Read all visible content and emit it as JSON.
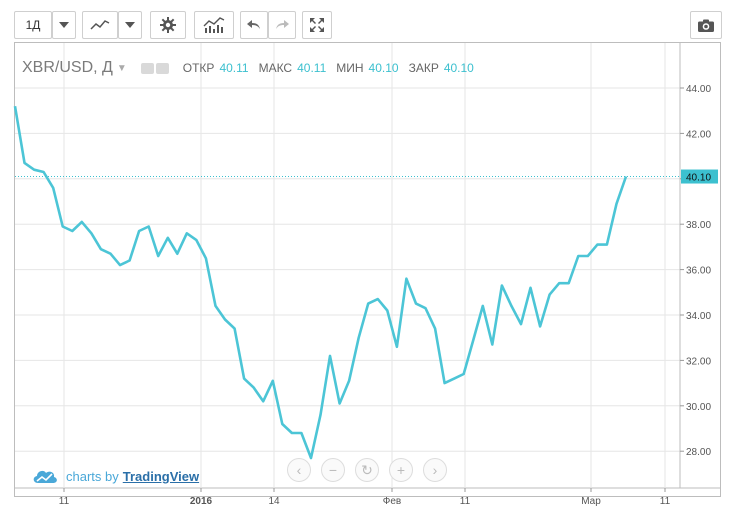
{
  "toolbar": {
    "interval_label": "1Д"
  },
  "legend": {
    "symbol": "XBR/USD, Д",
    "open_label": "ОТКР",
    "open_value": "40.11",
    "high_label": "МАКС",
    "high_value": "40.11",
    "low_label": "МИН",
    "low_value": "40.10",
    "close_label": "ЗАКР",
    "close_value": "40.10"
  },
  "branding": {
    "prefix": "charts by",
    "name": "TradingView"
  },
  "colors": {
    "line": "#4cc5d6",
    "price_tag": "#3cc0cf",
    "grid": "#e6e6e6"
  },
  "chart_data": {
    "type": "line",
    "title": "XBR/USD, Д",
    "xlabel": "",
    "ylabel": "",
    "ylim": [
      26.0,
      45.6
    ],
    "y_ticks": [
      "44.00",
      "42.00",
      "40.00",
      "38.00",
      "36.00",
      "34.00",
      "32.00",
      "30.00",
      "28.00"
    ],
    "x_ticks": [
      "11",
      "2016",
      "14",
      "Фев",
      "11",
      "Мар",
      "11"
    ],
    "last_price": "40.10",
    "grid": true,
    "series": [
      {
        "values": [
          43.2,
          40.7,
          40.4,
          40.3,
          39.6,
          37.9,
          37.7,
          38.1,
          37.6,
          36.9,
          36.7,
          36.2,
          36.4,
          37.7,
          37.9,
          36.6,
          37.4,
          36.7,
          37.6,
          37.3,
          36.5,
          34.4,
          33.8,
          33.4,
          31.2,
          30.8,
          30.2,
          31.1,
          29.2,
          28.8,
          28.8,
          27.7,
          29.6,
          32.2,
          30.1,
          31.1,
          33.0,
          34.5,
          34.7,
          34.2,
          32.6,
          35.6,
          34.5,
          34.3,
          33.4,
          31.0,
          31.2,
          31.4,
          32.9,
          34.4,
          32.7,
          35.3,
          34.4,
          33.6,
          35.2,
          33.5,
          34.9,
          35.4,
          35.4,
          36.6,
          36.6,
          37.1,
          37.1,
          38.9,
          40.1
        ]
      }
    ]
  }
}
